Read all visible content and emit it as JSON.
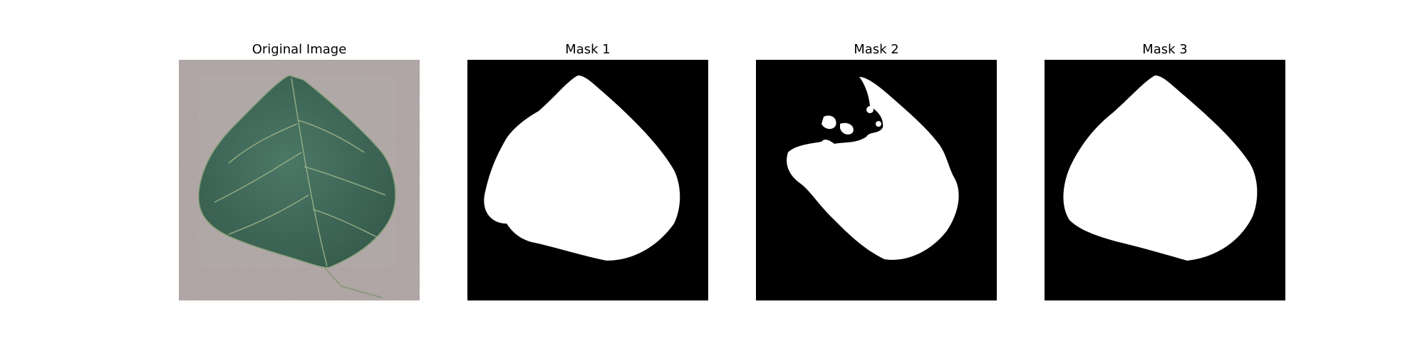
{
  "figure": {
    "panels": [
      {
        "title": "Original Image",
        "kind": "photo"
      },
      {
        "title": "Mask 1",
        "kind": "mask"
      },
      {
        "title": "Mask 2",
        "kind": "mask"
      },
      {
        "title": "Mask 3",
        "kind": "mask"
      }
    ],
    "colors": {
      "background": "#ffffff",
      "photo_background": "#b3a9a9",
      "leaf": "#3f6a5a",
      "leaf_vein": "#9fb58a",
      "mask_background": "#000000",
      "mask_foreground": "#ffffff"
    }
  }
}
